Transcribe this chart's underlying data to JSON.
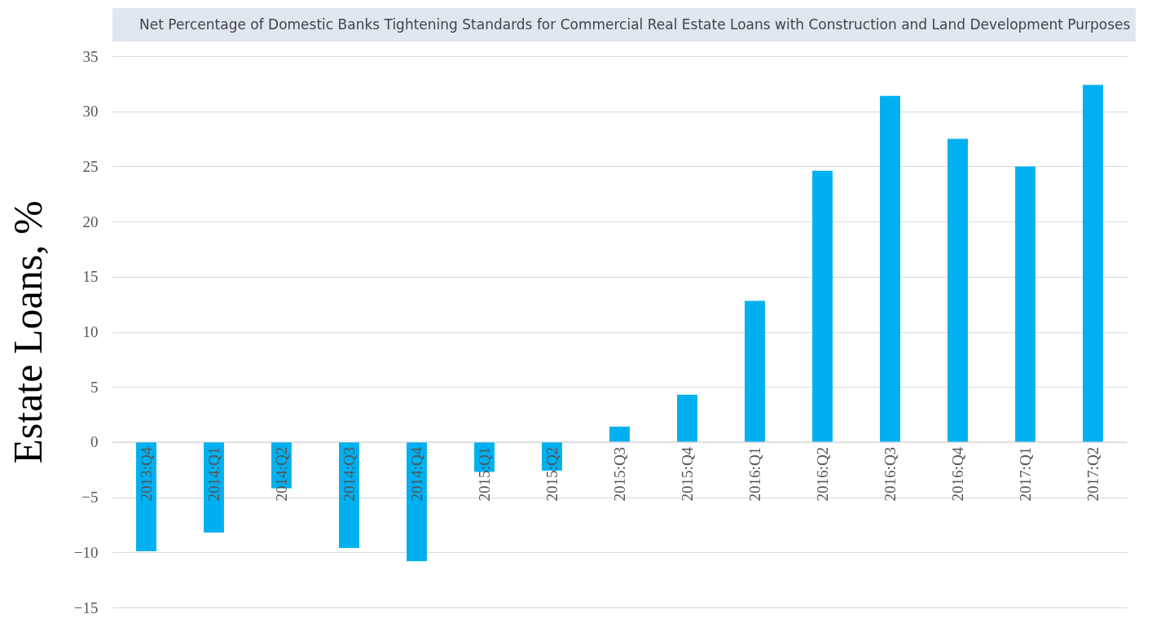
{
  "chart_data": {
    "type": "bar",
    "ylabel": "Estate Loans, %",
    "categories": [
      "2013:Q4",
      "2014:Q1",
      "2014:Q2",
      "2014:Q3",
      "2014:Q4",
      "2015:Q1",
      "2015:Q2",
      "2015:Q3",
      "2015:Q4",
      "2016:Q1",
      "2016:Q2",
      "2016:Q3",
      "2016:Q4",
      "2017:Q1",
      "2017:Q2"
    ],
    "series": [
      {
        "name": "Net Percentage of Domestic Banks Tightening Standards for Commercial Real Estate Loans with Construction and Land Development Purposes",
        "color": "#00b0f0",
        "values": [
          -9.9,
          -8.2,
          -4.2,
          -9.6,
          -10.8,
          -2.7,
          -2.6,
          1.4,
          4.3,
          12.8,
          24.6,
          31.4,
          27.5,
          25.0,
          32.4
        ]
      }
    ],
    "ylim": [
      -15,
      35
    ],
    "yticks": [
      -15,
      -10,
      -5,
      0,
      5,
      10,
      15,
      20,
      25,
      30,
      35
    ],
    "grid": "y",
    "legend": "top"
  }
}
